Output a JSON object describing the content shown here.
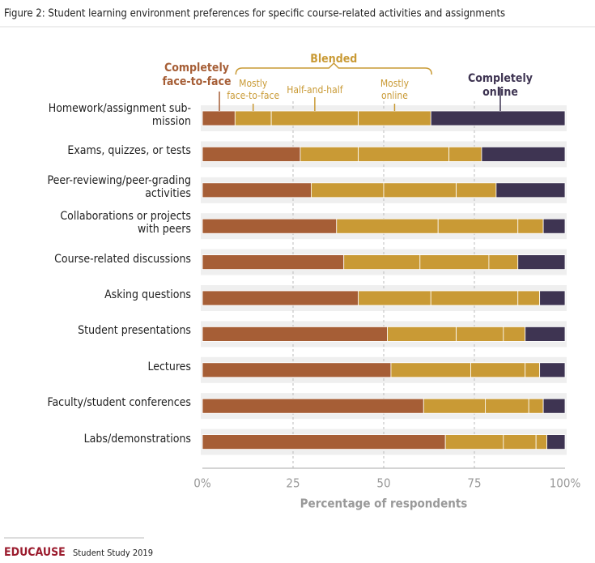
{
  "chart_data": {
    "type": "stacked-bar-horizontal",
    "title": "Figure 2: Student learning environment preferences for specific course-related activities and assignments",
    "categories": [
      "Homework/assignment sub-\nmission",
      "Exams, quizzes, or tests",
      "Peer-reviewing/peer-grading\nactivities",
      "Collaborations or projects\nwith peers",
      "Course-related discussions",
      "Asking questions",
      "Student presentations",
      "Lectures",
      "Faculty/student conferences",
      "Labs/demonstrations"
    ],
    "series": [
      {
        "name": "Completely\nface-to-face",
        "color": "#a65e36",
        "values": [
          9,
          27,
          30,
          37,
          39,
          43,
          51,
          52,
          61,
          67
        ]
      },
      {
        "name": "Mostly\nface-to-face",
        "color": "#c99a35",
        "values": [
          10,
          16,
          20,
          28,
          21,
          20,
          19,
          22,
          17,
          16
        ]
      },
      {
        "name": "Half-and-half",
        "color": "#c99a35",
        "values": [
          24,
          25,
          20,
          22,
          19,
          24,
          13,
          15,
          12,
          9
        ]
      },
      {
        "name": "Mostly\nonline",
        "color": "#c99a35",
        "values": [
          20,
          9,
          11,
          7,
          8,
          6,
          6,
          4,
          4,
          3
        ]
      },
      {
        "name": "Completely online",
        "color": "#3e3452",
        "values": [
          37,
          23,
          19,
          6,
          13,
          7,
          11,
          7,
          6,
          5
        ]
      }
    ],
    "legend_group": "Blended",
    "xlabel": "Percentage of respondents",
    "xlim": [
      0,
      100
    ],
    "xticks": [
      {
        "value": 0,
        "label": "0%"
      },
      25,
      50,
      75,
      {
        "value": 100,
        "label": "100%"
      }
    ],
    "grid": true,
    "footer": {
      "brand": "EDUCAUSE",
      "text": "Student Study 2019"
    }
  }
}
